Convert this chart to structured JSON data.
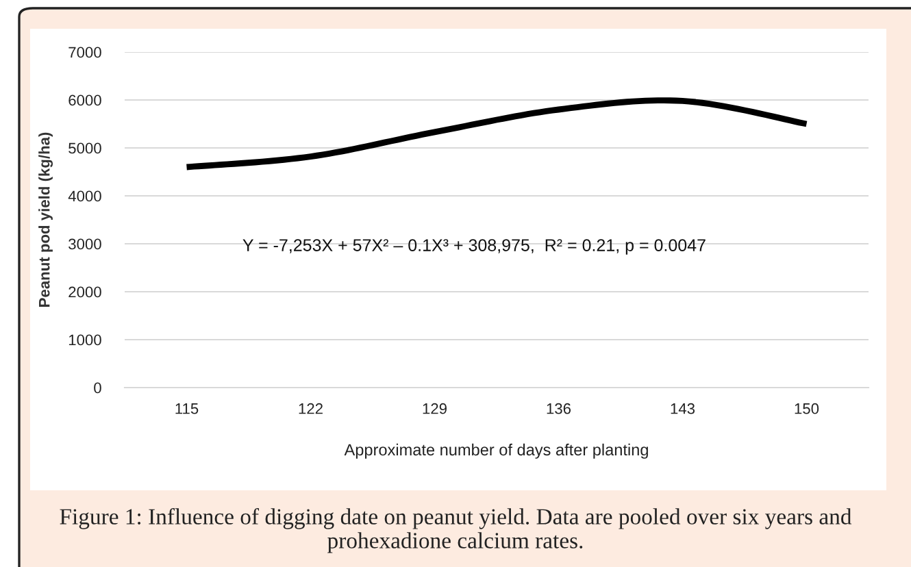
{
  "chart_data": {
    "type": "line",
    "categories": [
      "115",
      "122",
      "129",
      "136",
      "143",
      "150"
    ],
    "series": [
      {
        "color": "#000000",
        "values": [
          4600,
          4820,
          5330,
          5800,
          5980,
          5500
        ]
      }
    ],
    "ylim": [
      0,
      7000
    ],
    "yticks": [
      0,
      1000,
      2000,
      3000,
      4000,
      5000,
      6000,
      7000
    ],
    "xlabel": "Approximate number of days after planting",
    "ylabel": "Peanut pod yield (kg/ha)",
    "grid": "y",
    "marker": "none",
    "line_style": "solid",
    "annotations": [
      "Y = -7,253X + 57X² – 0.1X³ + 308,975,  R² = 0.21, p = 0.0047",
      "Figure 1: Influence of digging date on peanut yield. Data are pooled over six years and prohexadione calcium rates."
    ]
  }
}
